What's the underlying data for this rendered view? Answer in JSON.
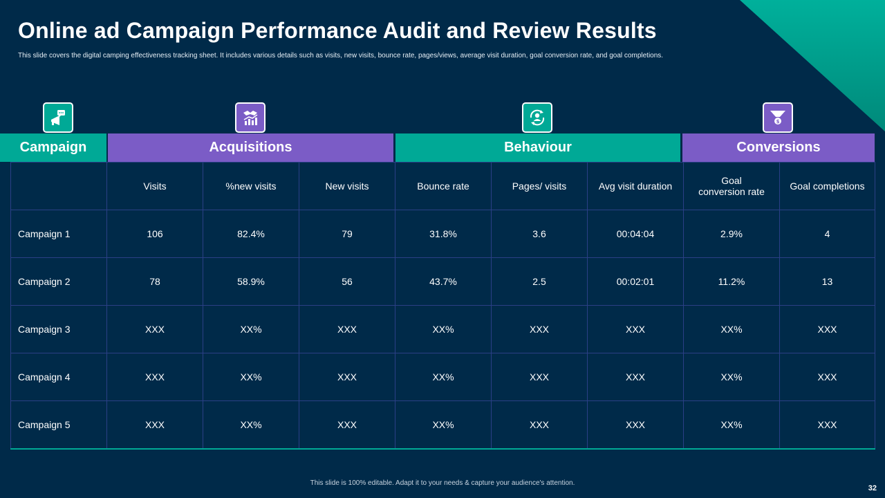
{
  "title": "Online ad Campaign Performance Audit and Review Results",
  "subtitle": "This slide covers the digital camping effectiveness tracking sheet. It includes various details such as visits, new visits, bounce rate, pages/views, average visit duration, goal conversion rate, and goal completions.",
  "colors": {
    "background": "#002a49",
    "teal": "#00a996",
    "purple": "#7b5cc6",
    "grid": "#2b3f86"
  },
  "icons": [
    "megaphone-chat-icon",
    "handshake-growth-icon",
    "customer-cycle-icon",
    "funnel-dollar-icon"
  ],
  "groups": {
    "campaign": "Campaign",
    "acquisitions": "Acquisitions",
    "behaviour": "Behaviour",
    "conversions": "Conversions"
  },
  "columns": [
    "",
    "Visits",
    "%new visits",
    "New visits",
    "Bounce rate",
    "Pages/ visits",
    "Avg visit duration",
    "Goal\nconversion rate",
    "Goal completions"
  ],
  "rows": [
    [
      "Campaign 1",
      "106",
      "82.4%",
      "79",
      "31.8%",
      "3.6",
      "00:04:04",
      "2.9%",
      "4"
    ],
    [
      "Campaign 2",
      "78",
      "58.9%",
      "56",
      "43.7%",
      "2.5",
      "00:02:01",
      "11.2%",
      "13"
    ],
    [
      "Campaign 3",
      "XXX",
      "XX%",
      "XXX",
      "XX%",
      "XXX",
      "XXX",
      "XX%",
      "XXX"
    ],
    [
      "Campaign 4",
      "XXX",
      "XX%",
      "XXX",
      "XX%",
      "XXX",
      "XXX",
      "XX%",
      "XXX"
    ],
    [
      "Campaign 5",
      "XXX",
      "XX%",
      "XXX",
      "XX%",
      "XXX",
      "XXX",
      "XX%",
      "XXX"
    ]
  ],
  "footer": "This slide is 100% editable.  Adapt it to your needs & capture your audience's attention.",
  "page_number": "32"
}
